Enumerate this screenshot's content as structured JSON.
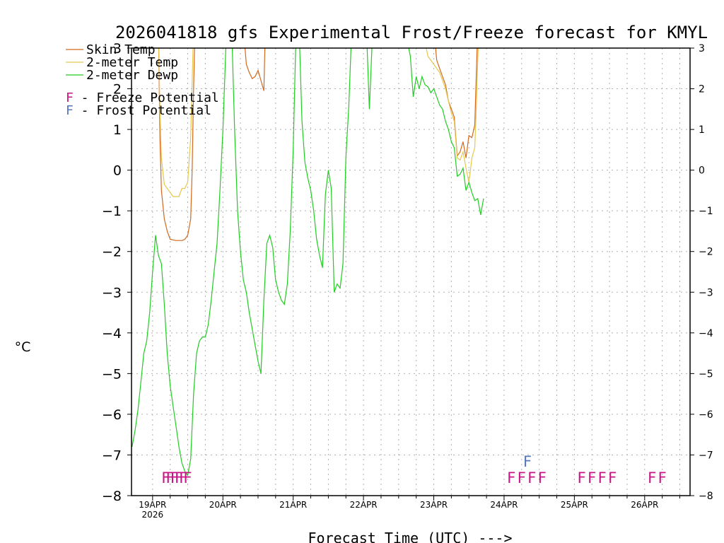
{
  "chart_data": {
    "type": "line",
    "title": "2026041818 gfs Experimental Frost/Freeze forecast for KMYL",
    "xlabel": "Forecast Time (UTC) --->",
    "ylabel": "°C",
    "ylim": [
      -8,
      3
    ],
    "xlim_hours": [
      -1.2,
      189.5
    ],
    "y_ticks": [
      3,
      2,
      1,
      0,
      -1,
      -2,
      -3,
      -4,
      -5,
      -6,
      -7,
      -8
    ],
    "x_ticks": [
      {
        "label": "19APR",
        "sub": "2026",
        "hour": 6
      },
      {
        "label": "20APR",
        "sub": "",
        "hour": 30
      },
      {
        "label": "21APR",
        "sub": "",
        "hour": 54
      },
      {
        "label": "22APR",
        "sub": "",
        "hour": 78
      },
      {
        "label": "23APR",
        "sub": "",
        "hour": 102
      },
      {
        "label": "24APR",
        "sub": "",
        "hour": 126
      },
      {
        "label": "25APR",
        "sub": "",
        "hour": 150
      },
      {
        "label": "26APR",
        "sub": "",
        "hour": 174
      }
    ],
    "grid": true,
    "legend": {
      "position": "top-left",
      "entries": [
        "Skin Temp",
        "2-meter Temp",
        "2-meter Dewp"
      ],
      "markers": [
        {
          "letter": "F",
          "text": " - Freeze Potential",
          "color": "#c71585"
        },
        {
          "letter": "F",
          "text": " - Frost Potential",
          "color": "#5577bb"
        }
      ]
    },
    "series": [
      {
        "name": "Skin Temp",
        "color": "#d2691e",
        "segments": [
          [
            [
              8,
              3.5
            ],
            [
              8.5,
              0.8
            ],
            [
              9,
              -0.5
            ],
            [
              10,
              -1.2
            ],
            [
              11,
              -1.5
            ],
            [
              12,
              -1.7
            ],
            [
              14,
              -1.73
            ],
            [
              16,
              -1.73
            ],
            [
              17,
              -1.7
            ],
            [
              18,
              -1.6
            ],
            [
              19,
              -1.2
            ],
            [
              19.5,
              0
            ],
            [
              20,
              2
            ],
            [
              20.5,
              3.5
            ]
          ],
          [
            [
              37,
              3.5
            ],
            [
              38,
              2.6
            ],
            [
              39,
              2.4
            ],
            [
              40,
              2.25
            ],
            [
              41,
              2.3
            ],
            [
              42,
              2.45
            ],
            [
              43,
              2.2
            ],
            [
              44,
              1.95
            ],
            [
              44.5,
              3.5
            ]
          ],
          [
            [
              102,
              3.5
            ],
            [
              103,
              2.7
            ],
            [
              104,
              2.5
            ],
            [
              105,
              2.3
            ],
            [
              106,
              2.1
            ],
            [
              107,
              1.7
            ],
            [
              108,
              1.5
            ],
            [
              109,
              1.3
            ],
            [
              110,
              0.35
            ],
            [
              111,
              0.45
            ],
            [
              112,
              0.7
            ],
            [
              113,
              0.3
            ],
            [
              114,
              0.85
            ],
            [
              115,
              0.8
            ],
            [
              116,
              1.1
            ],
            [
              117,
              3.5
            ]
          ]
        ]
      },
      {
        "name": "2-meter Temp",
        "color": "#e6c84c",
        "segments": [
          [
            [
              8,
              3.5
            ],
            [
              8.5,
              1.5
            ],
            [
              9,
              0.3
            ],
            [
              10,
              -0.35
            ],
            [
              11,
              -0.45
            ],
            [
              12,
              -0.55
            ],
            [
              13,
              -0.65
            ],
            [
              14,
              -0.65
            ],
            [
              15,
              -0.65
            ],
            [
              16,
              -0.45
            ],
            [
              17,
              -0.45
            ],
            [
              18,
              -0.3
            ],
            [
              19,
              0.8
            ],
            [
              20,
              3.5
            ]
          ],
          [
            [
              98,
              3.5
            ],
            [
              100,
              2.8
            ],
            [
              102,
              2.6
            ],
            [
              104,
              2.4
            ],
            [
              106,
              2.0
            ],
            [
              107,
              1.7
            ],
            [
              108,
              1.4
            ],
            [
              109,
              1.2
            ],
            [
              110,
              0.3
            ],
            [
              111,
              0.25
            ],
            [
              112,
              0.45
            ],
            [
              113,
              0.05
            ],
            [
              114,
              -0.3
            ],
            [
              115,
              0.3
            ],
            [
              116,
              0.55
            ],
            [
              116.5,
              1.5
            ],
            [
              117,
              2.7
            ],
            [
              117.5,
              3.5
            ]
          ]
        ]
      },
      {
        "name": "2-meter Dewp",
        "color": "#22cc22",
        "segments": [
          [
            [
              -1,
              -6.8
            ],
            [
              0,
              -6.4
            ],
            [
              1,
              -5.9
            ],
            [
              2,
              -5.2
            ],
            [
              3,
              -4.5
            ],
            [
              4,
              -4.2
            ],
            [
              5,
              -3.5
            ],
            [
              6,
              -2.5
            ],
            [
              7,
              -1.6
            ],
            [
              8,
              -2.1
            ],
            [
              9,
              -2.3
            ],
            [
              10,
              -3.3
            ],
            [
              11,
              -4.5
            ],
            [
              12,
              -5.3
            ],
            [
              13,
              -5.8
            ],
            [
              14,
              -6.3
            ],
            [
              15,
              -6.8
            ],
            [
              16,
              -7.2
            ],
            [
              17,
              -7.4
            ],
            [
              18,
              -7.5
            ],
            [
              19,
              -7.1
            ],
            [
              20,
              -5.5
            ],
            [
              21,
              -4.5
            ],
            [
              22,
              -4.2
            ],
            [
              23,
              -4.1
            ],
            [
              24,
              -4.1
            ],
            [
              25,
              -3.8
            ],
            [
              26,
              -3.2
            ],
            [
              27,
              -2.5
            ],
            [
              28,
              -1.8
            ],
            [
              29,
              -0.5
            ],
            [
              30,
              1.0
            ],
            [
              31,
              3.0
            ],
            [
              31.5,
              3.5
            ]
          ],
          [
            [
              33,
              3.5
            ],
            [
              34,
              1.0
            ],
            [
              35,
              -1.0
            ],
            [
              36,
              -2.0
            ],
            [
              37,
              -2.7
            ],
            [
              38,
              -3.0
            ],
            [
              39,
              -3.5
            ],
            [
              40,
              -3.9
            ],
            [
              41,
              -4.3
            ],
            [
              42,
              -4.7
            ],
            [
              43,
              -5.0
            ],
            [
              44,
              -3.2
            ],
            [
              45,
              -1.8
            ],
            [
              46,
              -1.6
            ],
            [
              47,
              -1.9
            ],
            [
              48,
              -2.7
            ],
            [
              49,
              -3.0
            ],
            [
              50,
              -3.2
            ],
            [
              51,
              -3.3
            ],
            [
              52,
              -2.8
            ],
            [
              53,
              -1.5
            ],
            [
              54,
              0.5
            ],
            [
              55,
              3.5
            ]
          ],
          [
            [
              56,
              3.5
            ],
            [
              57,
              1.2
            ],
            [
              58,
              0.2
            ],
            [
              59,
              -0.2
            ],
            [
              60,
              -0.5
            ],
            [
              61,
              -1.0
            ],
            [
              62,
              -1.7
            ],
            [
              63,
              -2.1
            ],
            [
              64,
              -2.4
            ],
            [
              65,
              -0.6
            ],
            [
              66,
              0.0
            ],
            [
              67,
              -0.45
            ],
            [
              68,
              -3.0
            ],
            [
              69,
              -2.8
            ],
            [
              70,
              -2.9
            ],
            [
              71,
              -2.3
            ],
            [
              72,
              0.3
            ],
            [
              73,
              1.6
            ],
            [
              74,
              3.5
            ]
          ],
          [
            [
              79,
              3.5
            ],
            [
              80,
              1.5
            ],
            [
              81,
              3.2
            ],
            [
              82,
              3.3
            ],
            [
              83,
              3.5
            ]
          ],
          [
            [
              92,
              3.5
            ],
            [
              94,
              2.8
            ],
            [
              95,
              1.8
            ],
            [
              96,
              2.3
            ],
            [
              97,
              2.0
            ],
            [
              98,
              2.3
            ],
            [
              99,
              2.1
            ],
            [
              100,
              2.05
            ],
            [
              101,
              1.9
            ],
            [
              102,
              2.0
            ],
            [
              103,
              1.8
            ],
            [
              104,
              1.6
            ],
            [
              105,
              1.5
            ],
            [
              106,
              1.2
            ],
            [
              107,
              1.0
            ],
            [
              108,
              0.7
            ],
            [
              109,
              0.55
            ],
            [
              110,
              -0.15
            ],
            [
              111,
              -0.1
            ],
            [
              112,
              0.05
            ],
            [
              113,
              -0.5
            ],
            [
              114,
              -0.3
            ],
            [
              115,
              -0.55
            ],
            [
              116,
              -0.75
            ],
            [
              117,
              -0.7
            ],
            [
              118,
              -1.1
            ],
            [
              119,
              -0.7
            ]
          ]
        ]
      }
    ],
    "potential_markers": {
      "freeze": {
        "label": "F",
        "color": "#c71585",
        "y": -7.55,
        "clusters": [
          {
            "text": "FFFFFF",
            "hours": [
              10.5,
              12,
              13.5,
              15,
              16.5,
              18
            ]
          },
          {
            "text": "FFFF",
            "hours": [
              128.5,
              132,
              135.5,
              139
            ]
          },
          {
            "text": "FFFF",
            "hours": [
              152.5,
              156,
              159.5,
              163
            ]
          },
          {
            "text": "FF",
            "hours": [
              176.5,
              180
            ]
          }
        ]
      },
      "frost": {
        "label": "F",
        "color": "#5577bb",
        "y": -7.15,
        "hours": [
          134
        ]
      }
    }
  }
}
